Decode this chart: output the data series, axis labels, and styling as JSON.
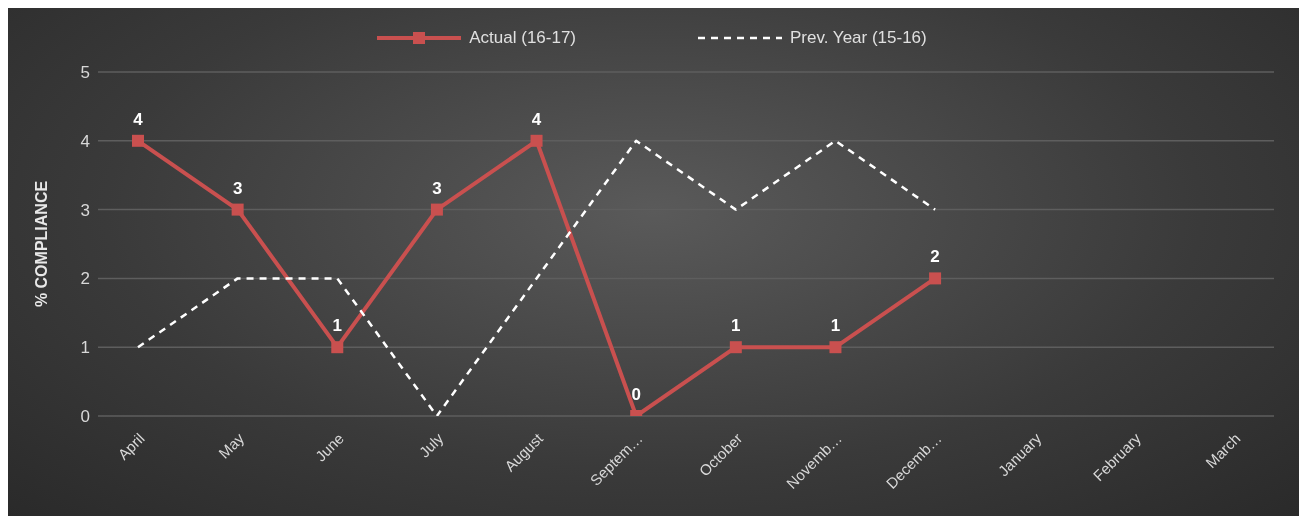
{
  "chart_data": {
    "type": "line",
    "ylabel": "% COMPLIANCE",
    "categories": [
      "April",
      "May",
      "June",
      "July",
      "August",
      "Septem…",
      "October",
      "Novemb…",
      "Decemb…",
      "January",
      "February",
      "March"
    ],
    "series": [
      {
        "name": "Actual (16-17)",
        "color": "#c9504f",
        "values": [
          4,
          3,
          1,
          3,
          4,
          0,
          1,
          1,
          2,
          null,
          null,
          null
        ],
        "value_labels": [
          "4",
          "3",
          "1",
          "3",
          "4",
          "0",
          "1",
          "1",
          "2",
          null,
          null,
          null
        ],
        "marker": "square",
        "line_style": "solid"
      },
      {
        "name": "Prev. Year (15-16)",
        "color": "#ffffff",
        "values": [
          1,
          2,
          2,
          0,
          2,
          4,
          3,
          4,
          3,
          null,
          null,
          null
        ],
        "marker": "none",
        "line_style": "dashed"
      }
    ],
    "ylim": [
      0,
      5
    ],
    "yticks": [
      0,
      1,
      2,
      3,
      4,
      5
    ],
    "grid": "y",
    "legend": "top"
  }
}
